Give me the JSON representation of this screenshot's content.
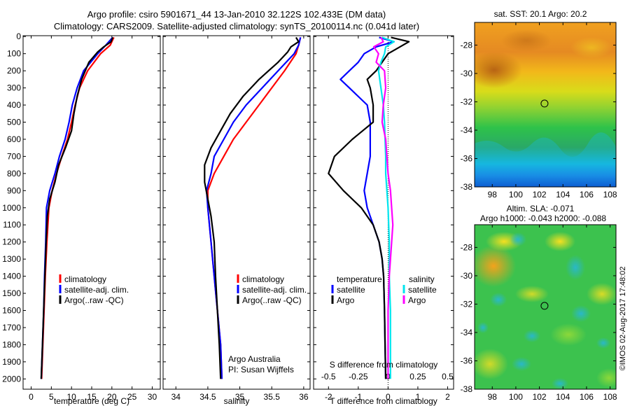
{
  "header": {
    "title_line1": "Argo profile: csiro 5901671_44 13-Jan-2010 32.122S 102.433E (DM data)",
    "title_line2": "Climatology: CARS2009. Satellite-adjusted climatology: synTS_20100114.nc (0.041d later)"
  },
  "credit": "Argo Australia",
  "pi": "PI: Susan Wijffels",
  "stamp": "©IMOS 02-Aug-2017 17:48:02",
  "chart_data": [
    {
      "type": "line",
      "id": "temperature",
      "xlabel": "temperature (deg C)",
      "ylabel": "",
      "xlim": [
        -2,
        32
      ],
      "ylim": [
        2060,
        -5
      ],
      "xticks": [
        0,
        5,
        10,
        15,
        20,
        25,
        30
      ],
      "xtick_labels": [
        "0",
        "5",
        "10",
        "15",
        "20",
        "25",
        "30"
      ],
      "yticks": [
        0,
        100,
        200,
        300,
        400,
        500,
        600,
        700,
        800,
        900,
        1000,
        1100,
        1200,
        1300,
        1400,
        1500,
        1600,
        1700,
        1800,
        1900,
        2000
      ],
      "ytick_labels": [
        "0",
        "100",
        "200",
        "300",
        "400",
        "500",
        "600",
        "700",
        "800",
        "900",
        "1000",
        "1100",
        "1200",
        "1300",
        "1400",
        "1500",
        "1600",
        "1700",
        "1800",
        "1900",
        "2000"
      ],
      "legend": [
        "climatology",
        "satellite-adj. clim.",
        "Argo(..raw -QC)"
      ],
      "series": [
        {
          "name": "climatology",
          "color": "#ff0000",
          "depth": [
            5,
            50,
            100,
            200,
            300,
            400,
            500,
            600,
            700,
            800,
            900,
            1000,
            1200,
            1400,
            1600,
            1800,
            2000
          ],
          "values": [
            20.5,
            19.6,
            17.2,
            14.0,
            12.0,
            10.9,
            10.0,
            9.0,
            7.6,
            6.3,
            5.2,
            4.4,
            3.9,
            3.5,
            3.2,
            2.9,
            2.6
          ]
        },
        {
          "name": "satellite-adj. clim.",
          "color": "#0000ff",
          "depth": [
            5,
            50,
            100,
            200,
            300,
            400,
            500,
            600,
            700,
            800,
            900,
            1000,
            1200,
            1400,
            1600,
            1800,
            2000
          ],
          "values": [
            20.2,
            18.5,
            16.5,
            13.0,
            11.4,
            10.2,
            9.4,
            8.4,
            7.0,
            5.9,
            4.6,
            3.8,
            3.6,
            3.3,
            3.1,
            2.8,
            2.5
          ]
        },
        {
          "name": "Argo(..raw -QC)",
          "color": "#000000",
          "depth": [
            5,
            30,
            60,
            90,
            150,
            250,
            350,
            450,
            550,
            650,
            750,
            850,
            950,
            1050,
            1200,
            1400,
            1600,
            1800,
            2000
          ],
          "values": [
            20.2,
            19.8,
            18.0,
            16.5,
            14.3,
            12.5,
            11.4,
            10.6,
            10.0,
            8.5,
            6.8,
            5.9,
            4.6,
            4.0,
            3.7,
            3.4,
            3.1,
            2.8,
            2.5
          ]
        }
      ]
    },
    {
      "type": "line",
      "id": "salinity",
      "xlabel": "salinity",
      "ylabel": "",
      "xlim": [
        33.8,
        36.1
      ],
      "ylim": [
        2060,
        -5
      ],
      "xticks": [
        34,
        34.5,
        35,
        35.5,
        36
      ],
      "xtick_labels": [
        "34",
        "34.5",
        "35",
        "35.5",
        "36"
      ],
      "legend": [
        "climatology",
        "satellite-adj. clim.",
        "Argo(..raw -QC)"
      ],
      "series": [
        {
          "name": "climatology",
          "color": "#ff0000",
          "depth": [
            5,
            50,
            100,
            200,
            300,
            400,
            500,
            600,
            700,
            800,
            900,
            1000,
            1200,
            1400,
            1600,
            1800,
            2000
          ],
          "values": [
            35.95,
            35.92,
            35.88,
            35.7,
            35.5,
            35.3,
            35.1,
            34.9,
            34.75,
            34.6,
            34.5,
            34.5,
            34.55,
            34.6,
            34.65,
            34.7,
            34.72
          ]
        },
        {
          "name": "satellite-adj. clim.",
          "color": "#0000ff",
          "depth": [
            5,
            50,
            100,
            200,
            300,
            400,
            500,
            600,
            700,
            800,
            900,
            1000,
            1200,
            1400,
            1600,
            1800,
            2000
          ],
          "values": [
            35.95,
            35.92,
            35.85,
            35.6,
            35.35,
            35.1,
            34.9,
            34.75,
            34.6,
            34.55,
            34.48,
            34.5,
            34.55,
            34.6,
            34.65,
            34.7,
            34.72
          ]
        },
        {
          "name": "Argo(..raw -QC)",
          "color": "#000000",
          "depth": [
            5,
            30,
            60,
            90,
            150,
            250,
            350,
            450,
            550,
            650,
            750,
            850,
            950,
            1050,
            1200,
            1400,
            1600,
            1800,
            2000
          ],
          "values": [
            35.88,
            35.92,
            35.8,
            35.75,
            35.6,
            35.3,
            35.05,
            34.85,
            34.7,
            34.55,
            34.45,
            34.45,
            34.5,
            34.55,
            34.6,
            34.62,
            34.65,
            34.68,
            34.7
          ]
        }
      ]
    },
    {
      "type": "line",
      "id": "difference",
      "xlabel": "T difference from climatology",
      "xlabel_top": "S difference from climatology",
      "xlim": [
        -2.5,
        2.2
      ],
      "ylim": [
        2060,
        -5
      ],
      "xticks": [
        -2,
        -1,
        0,
        1,
        2
      ],
      "xtick_labels": [
        "-2",
        "-1",
        "0",
        "1",
        "2"
      ],
      "xticks_top": [
        -0.5,
        -0.25,
        0,
        0.25,
        0.5
      ],
      "xtick_labels_top": [
        "-0.5",
        "-0.25",
        "0",
        "0.25",
        "0.5"
      ],
      "s_scale": 4,
      "legend_temperature_title": "temperature",
      "legend_salinity_title": "salinity",
      "legend_temperature": [
        "satellite",
        "Argo"
      ],
      "legend_salinity": [
        "satellite",
        "Argo"
      ],
      "series": [
        {
          "name": "temperature satellite",
          "quantity": "T",
          "color": "#0000ff",
          "depth": [
            5,
            30,
            60,
            100,
            150,
            200,
            250,
            300,
            400,
            500,
            600,
            700,
            800,
            900,
            1000,
            1100,
            1200,
            1300,
            1400,
            1600,
            1800,
            2000
          ],
          "values": [
            -0.3,
            0.2,
            -0.4,
            -0.8,
            -1.0,
            -1.3,
            -1.6,
            -1.3,
            -0.7,
            -0.6,
            -0.6,
            -0.6,
            -0.7,
            -0.8,
            -0.7,
            -0.5,
            -0.3,
            -0.2,
            -0.15,
            -0.12,
            -0.1,
            -0.08
          ]
        },
        {
          "name": "temperature Argo",
          "quantity": "T",
          "color": "#000000",
          "depth": [
            5,
            30,
            60,
            100,
            150,
            200,
            250,
            300,
            400,
            500,
            600,
            700,
            800,
            900,
            1000,
            1100,
            1200,
            1300,
            1400,
            1600,
            1800,
            2000
          ],
          "values": [
            0.1,
            0.7,
            0.4,
            0.0,
            -0.2,
            -0.4,
            -0.7,
            -0.6,
            -0.5,
            -0.5,
            -1.2,
            -1.8,
            -2.0,
            -1.5,
            -0.9,
            -0.5,
            -0.3,
            -0.2,
            -0.15,
            -0.12,
            -0.1,
            -0.08
          ]
        },
        {
          "name": "salinity satellite",
          "quantity": "S",
          "color": "#00e5ee",
          "depth": [
            5,
            30,
            60,
            100,
            150,
            200,
            300,
            400,
            500,
            600,
            700,
            800,
            900,
            1000,
            1200,
            1400,
            1600,
            1800,
            2000
          ],
          "values": [
            -0.05,
            0.05,
            -0.02,
            -0.03,
            -0.06,
            -0.08,
            -0.06,
            -0.04,
            -0.03,
            -0.025,
            -0.02,
            -0.02,
            -0.01,
            0.0,
            0.01,
            0.01,
            0.02,
            0.02,
            0.02
          ]
        },
        {
          "name": "salinity Argo",
          "quantity": "S",
          "color": "#ff00ff",
          "depth": [
            5,
            30,
            60,
            100,
            150,
            200,
            300,
            400,
            500,
            600,
            700,
            800,
            900,
            1000,
            1100,
            1200,
            1300,
            1400,
            1600,
            1800,
            2000
          ],
          "values": [
            -0.06,
            -0.04,
            -0.12,
            -0.08,
            -0.1,
            -0.03,
            -0.02,
            -0.04,
            -0.05,
            -0.02,
            -0.01,
            0.0,
            0.02,
            0.03,
            0.04,
            0.03,
            0.02,
            0.01,
            0.0,
            0.0,
            0.0
          ]
        }
      ]
    },
    {
      "type": "heatmap",
      "id": "sst_map",
      "title": "sat. SST: 20.1  Argo: 20.2",
      "xlim": [
        96.5,
        108.5
      ],
      "ylim": [
        -38,
        -26.4
      ],
      "xticks": [
        98,
        100,
        102,
        104,
        106,
        108
      ],
      "xtick_labels": [
        "98",
        "100",
        "102",
        "104",
        "106",
        "108"
      ],
      "yticks": [
        -28,
        -30,
        -32,
        -34,
        -36,
        -38
      ],
      "ytick_labels": [
        "-28",
        "-30",
        "-32",
        "-34",
        "-36",
        "-38"
      ],
      "marker": {
        "lon": 102.433,
        "lat": -32.122
      }
    },
    {
      "type": "heatmap",
      "id": "sla_map",
      "title_line1": "Altim. SLA: -0.071",
      "title_line2": "Argo h1000: -0.043  h2000: -0.088",
      "xlim": [
        96.5,
        108.5
      ],
      "ylim": [
        -38,
        -26.4
      ],
      "xticks": [
        98,
        100,
        102,
        104,
        106,
        108
      ],
      "xtick_labels": [
        "98",
        "100",
        "102",
        "104",
        "106",
        "108"
      ],
      "yticks": [
        -28,
        -30,
        -32,
        -34,
        -36,
        -38
      ],
      "ytick_labels": [
        "-28",
        "-30",
        "-32",
        "-34",
        "-36",
        "-38"
      ],
      "marker": {
        "lon": 102.433,
        "lat": -32.122
      }
    }
  ]
}
